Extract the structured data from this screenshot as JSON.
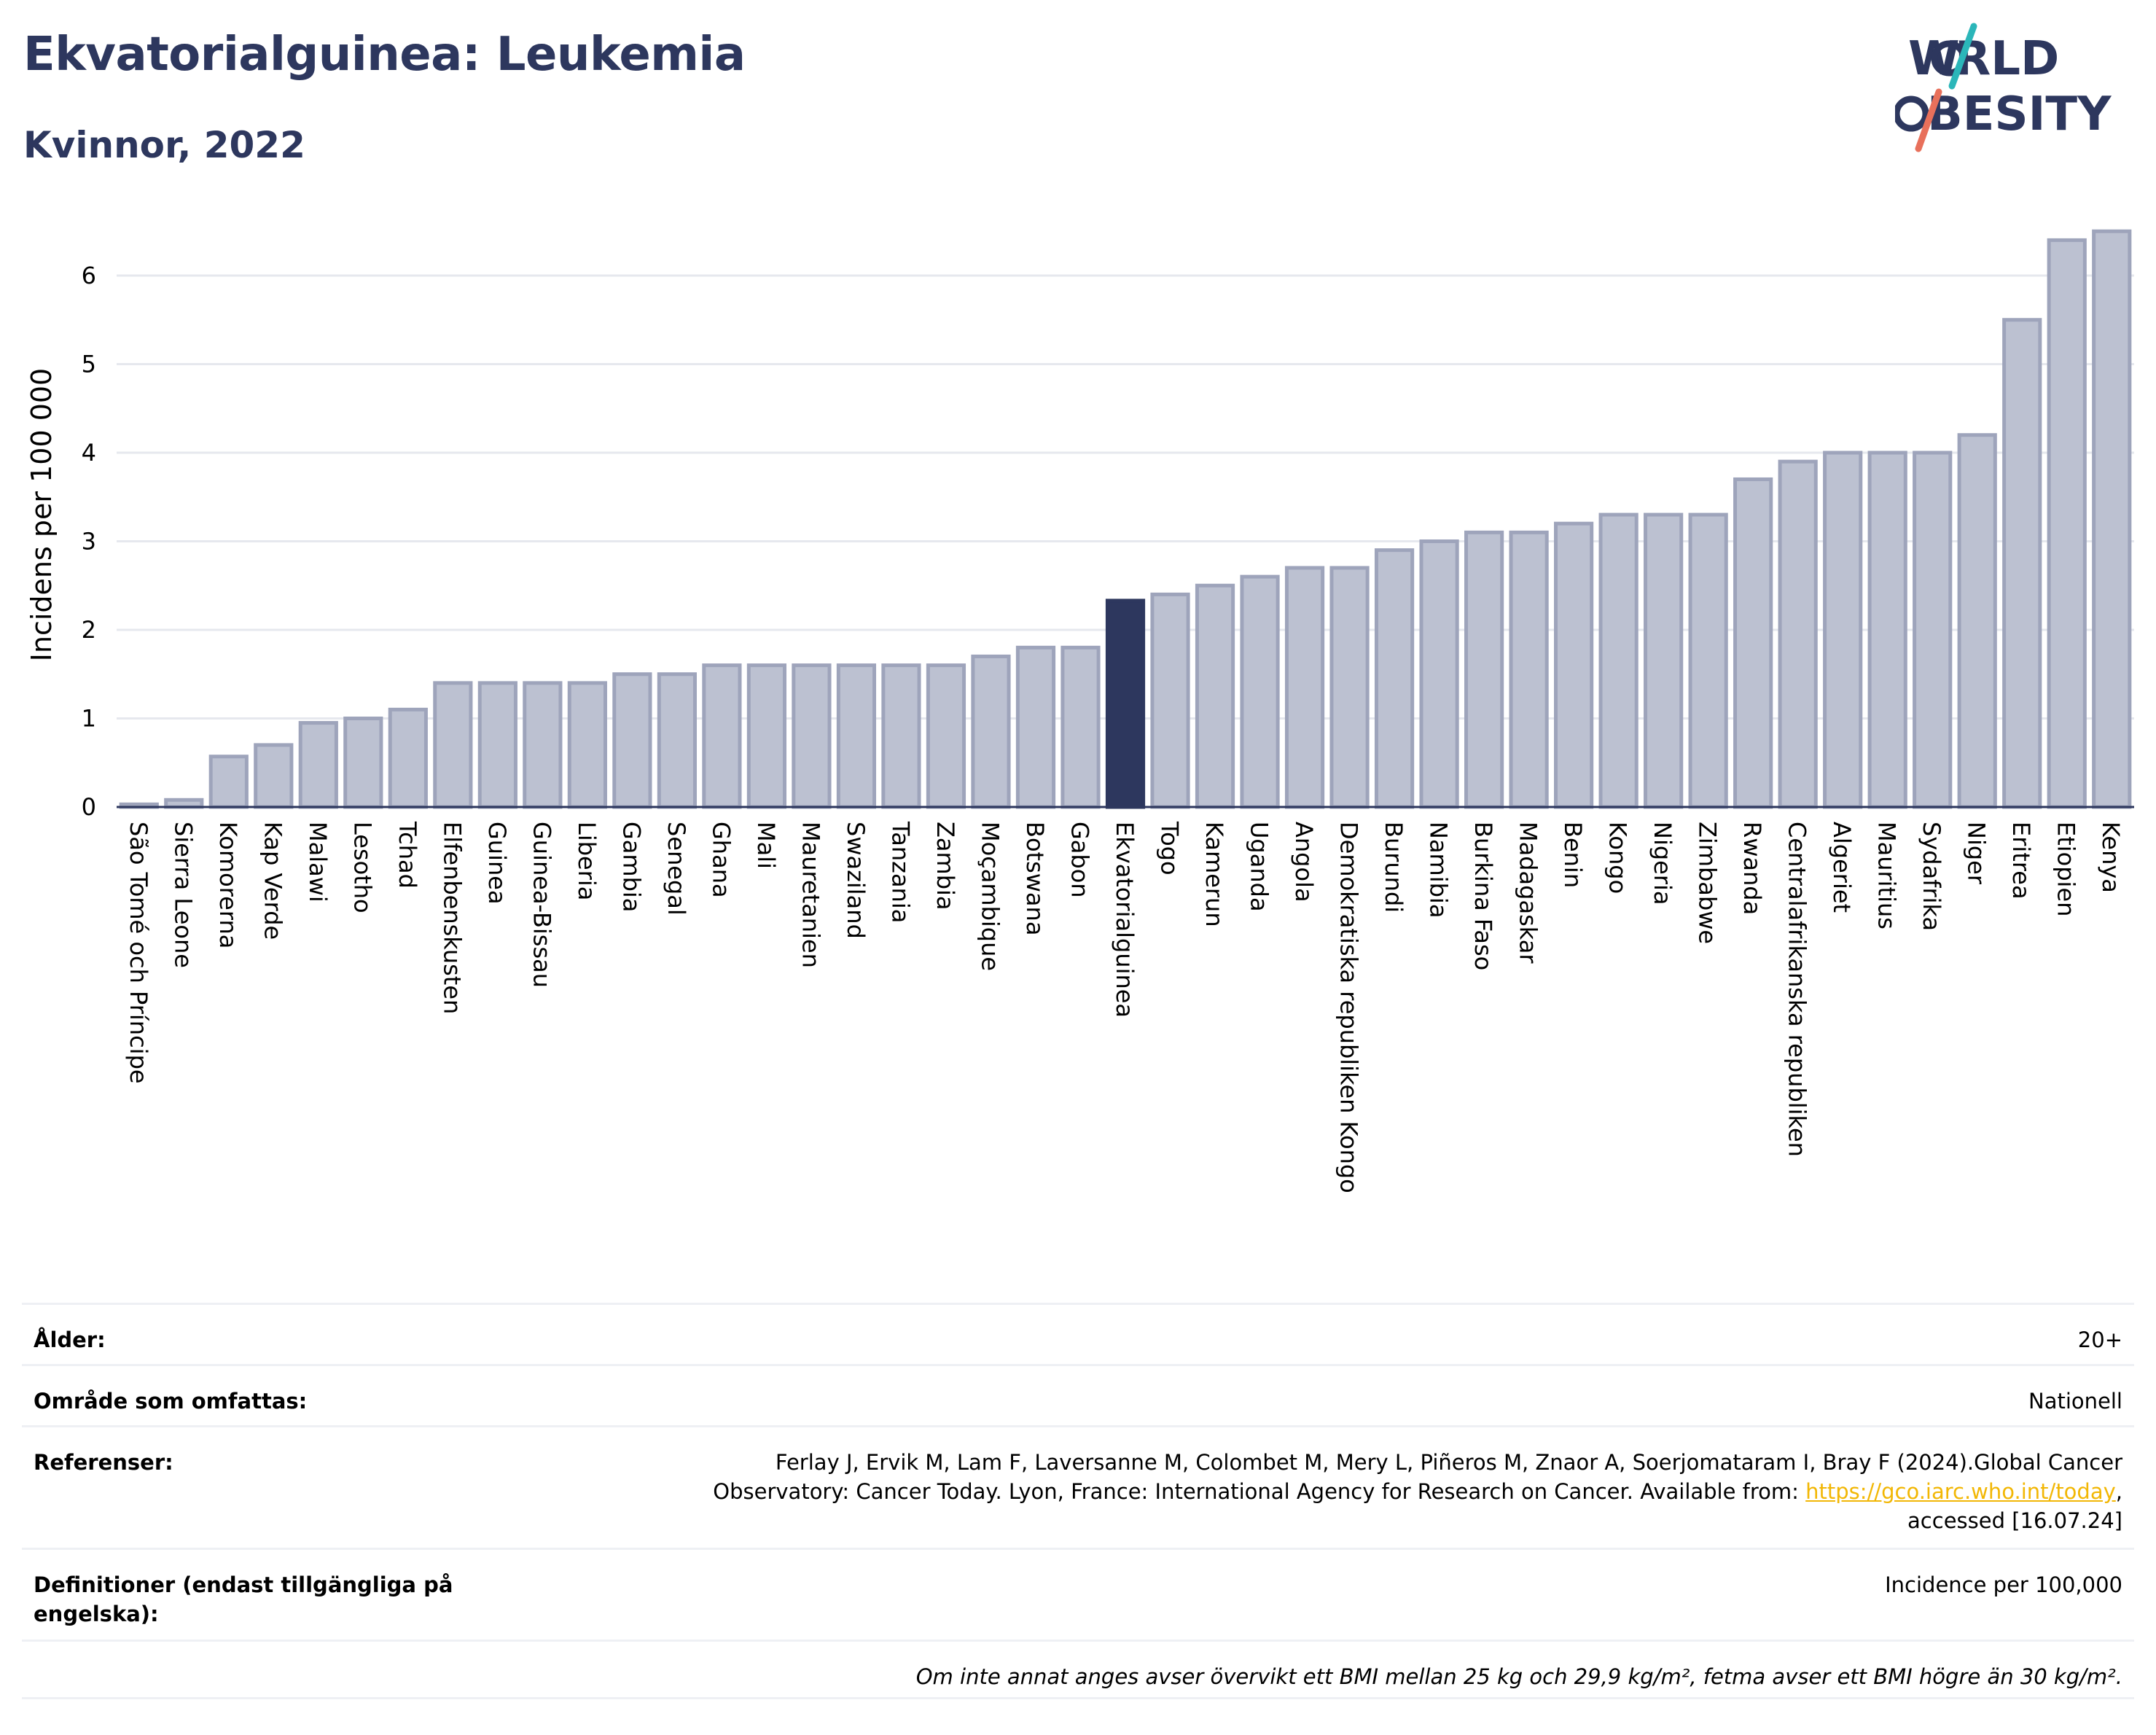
{
  "header": {
    "title": "Ekvatorialguinea: Leukemia",
    "subtitle": "Kvinnor, 2022",
    "logo_text": "WORLD OBESITY"
  },
  "colors": {
    "title": "#2d375e",
    "bar_default": "#bcc1d1",
    "bar_border": "#9ea4bb",
    "bar_highlight": "#2d375e",
    "logo_slash_teal": "#2bb6b9",
    "logo_slash_coral": "#e8705b",
    "link": "#f2b705"
  },
  "chart_data": {
    "type": "bar",
    "ylabel": "Incidens per 100 000",
    "ylim": [
      0,
      6.6
    ],
    "yticks": [
      0,
      1,
      2,
      3,
      4,
      5,
      6
    ],
    "grid": true,
    "highlight": "Ekvatorialguinea",
    "categories": [
      "São Tomé och Príncipe",
      "Sierra Leone",
      "Komorerna",
      "Kap Verde",
      "Malawi",
      "Lesotho",
      "Tchad",
      "Elfenbenskusten",
      "Guinea",
      "Guinea-Bissau",
      "Liberia",
      "Gambia",
      "Senegal",
      "Ghana",
      "Mali",
      "Mauretanien",
      "Swaziland",
      "Tanzania",
      "Zambia",
      "Moçambique",
      "Botswana",
      "Gabon",
      "Ekvatorialguinea",
      "Togo",
      "Kamerun",
      "Uganda",
      "Angola",
      "Demokratiska republiken Kongo",
      "Burundi",
      "Namibia",
      "Burkina Faso",
      "Madagaskar",
      "Benin",
      "Kongo",
      "Nigeria",
      "Zimbabwe",
      "Rwanda",
      "Centralafrikanska republiken",
      "Algeriet",
      "Mauritius",
      "Sydafrika",
      "Niger",
      "Eritrea",
      "Etiopien",
      "Kenya"
    ],
    "values": [
      0.03,
      0.08,
      0.57,
      0.7,
      0.95,
      1.0,
      1.1,
      1.4,
      1.4,
      1.4,
      1.4,
      1.5,
      1.5,
      1.6,
      1.6,
      1.6,
      1.6,
      1.6,
      1.6,
      1.7,
      1.8,
      1.8,
      2.33,
      2.4,
      2.5,
      2.6,
      2.7,
      2.7,
      2.9,
      3.0,
      3.1,
      3.1,
      3.2,
      3.3,
      3.3,
      3.3,
      3.7,
      3.9,
      4.0,
      4.0,
      4.0,
      4.2,
      5.5,
      6.4,
      6.5
    ]
  },
  "info": {
    "age_label": "Ålder:",
    "age_value": "20+",
    "area_label": "Område som omfattas:",
    "area_value": "Nationell",
    "references_label": "Referenser:",
    "references_text_1": "Ferlay J, Ervik M, Lam F, Laversanne M, Colombet M, Mery L, Piñeros M, Znaor A, Soerjomataram I, Bray F (2024).Global Cancer",
    "references_text_2": "Observatory: Cancer Today. Lyon, France: International Agency for Research on Cancer. Available from: ",
    "references_link": "https://gco.iarc.who.int/today",
    "references_text_3": ",",
    "references_text_4": "accessed [16.07.24]",
    "definitions_label": "Definitioner (endast tillgängliga på engelska):",
    "definitions_value": "Incidence per 100,000",
    "note": "Om inte annat anges avser övervikt ett BMI mellan 25 kg och 29,9 kg/m², fetma avser ett BMI högre än 30 kg/m²."
  }
}
